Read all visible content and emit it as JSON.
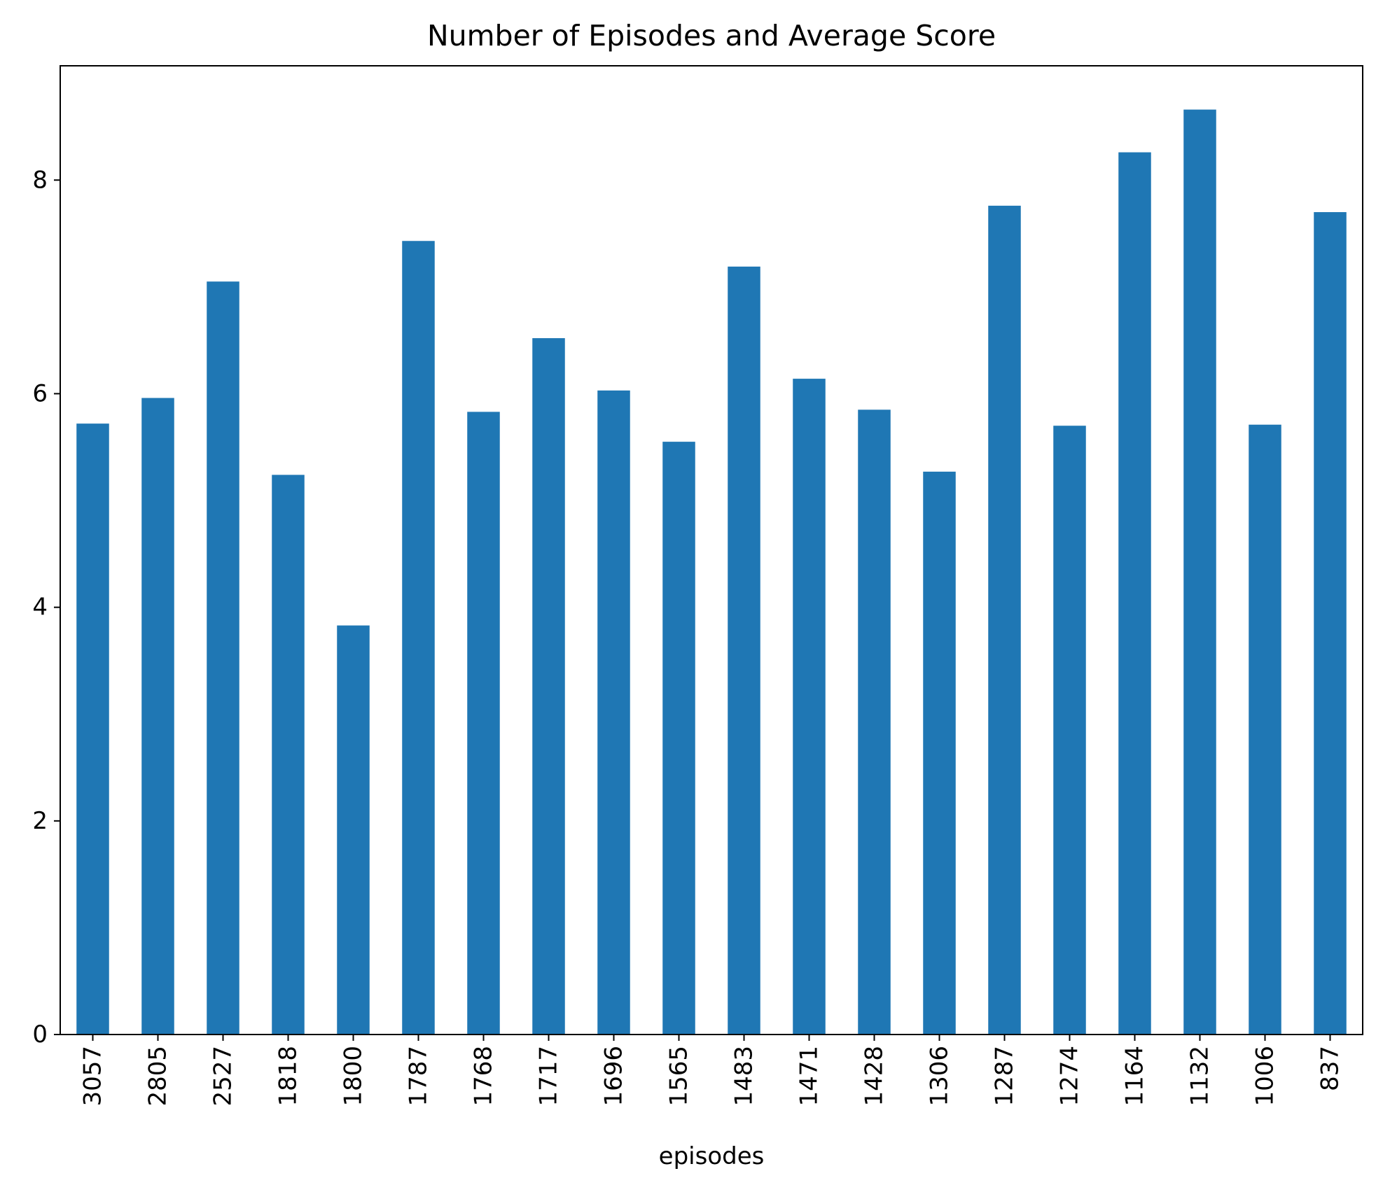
{
  "chart_data": {
    "type": "bar",
    "title": "Number of Episodes and Average Score",
    "xlabel": "episodes",
    "ylabel": "",
    "categories": [
      "3057",
      "2805",
      "2527",
      "1818",
      "1800",
      "1787",
      "1768",
      "1717",
      "1696",
      "1565",
      "1483",
      "1471",
      "1428",
      "1306",
      "1287",
      "1274",
      "1164",
      "1132",
      "1006",
      "837"
    ],
    "values": [
      5.72,
      5.96,
      7.05,
      5.24,
      3.83,
      7.43,
      5.83,
      6.52,
      6.03,
      5.55,
      7.19,
      6.14,
      5.85,
      5.27,
      7.76,
      5.7,
      8.26,
      8.66,
      5.71,
      7.7
    ],
    "ylim": [
      0,
      9.07
    ],
    "yticks": [
      0,
      2,
      4,
      6,
      8
    ],
    "ytick_labels": [
      "0",
      "2",
      "4",
      "6",
      "8"
    ],
    "bar_color": "#1f77b4",
    "grid": false,
    "legend": "none"
  }
}
